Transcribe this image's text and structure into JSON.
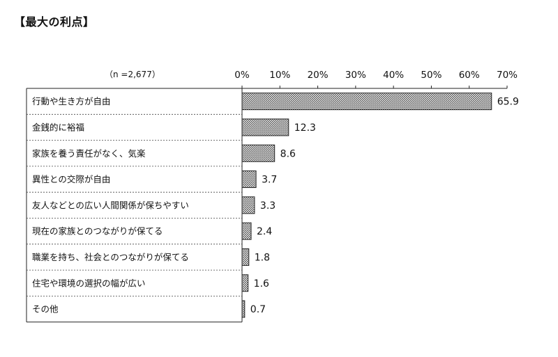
{
  "chart_data": {
    "type": "bar",
    "orientation": "horizontal",
    "title": "【最大の利点】",
    "sample_note": "（n =2,677）",
    "categories": [
      "行動や生き方が自由",
      "金銭的に裕福",
      "家族を養う責任がなく、気楽",
      "異性との交際が自由",
      "友人などとの広い人間関係が保ちやすい",
      "現在の家族とのつながりが保てる",
      "職業を持ち、社会とのつながりが保てる",
      "住宅や環境の選択の幅が広い",
      "その他"
    ],
    "values": [
      65.9,
      12.3,
      8.6,
      3.7,
      3.3,
      2.4,
      1.8,
      1.6,
      0.7
    ],
    "value_labels": [
      "65.9",
      "12.3",
      "8.6",
      "3.7",
      "3.3",
      "2.4",
      "1.8",
      "1.6",
      "0.7"
    ],
    "xlim": [
      0,
      70
    ],
    "xticks": [
      "0%",
      "10%",
      "20%",
      "30%",
      "40%",
      "50%",
      "60%",
      "70%"
    ],
    "xtick_values": [
      0,
      10,
      20,
      30,
      40,
      50,
      60,
      70
    ],
    "grid": false,
    "bar_fill": "crosshatch",
    "bar_color": "#5a5a5a"
  }
}
